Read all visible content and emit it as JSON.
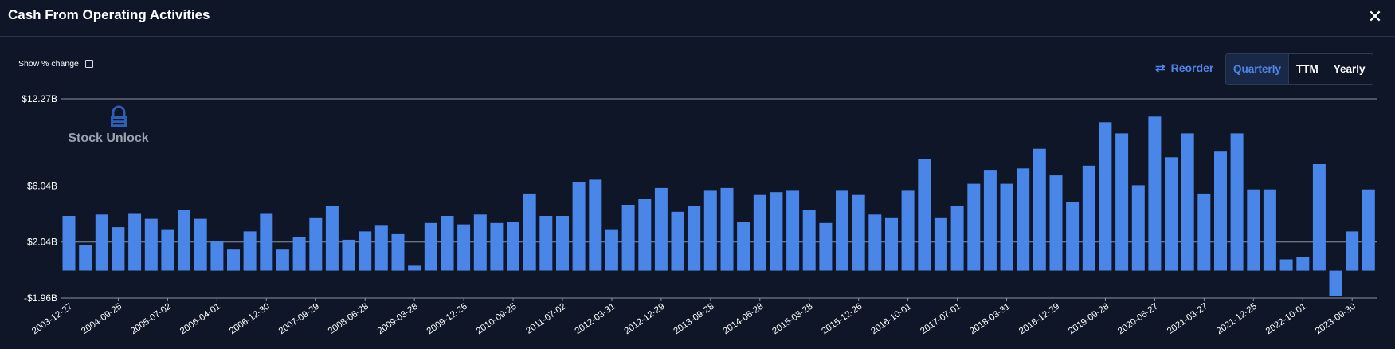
{
  "header": {
    "title": "Cash From Operating Activities"
  },
  "controls": {
    "show_pct_label": "Show % change",
    "reorder_label": "Reorder",
    "periods": [
      "Quarterly",
      "TTM",
      "Yearly"
    ],
    "active_period": "Quarterly"
  },
  "watermark": {
    "text": "Stock Unlock"
  },
  "colors": {
    "bar": "#4a86e8",
    "background": "#0e1628",
    "accent": "#4f86e8",
    "grid": "#8a93a3"
  },
  "chart_data": {
    "type": "bar",
    "ylim": [
      -1.96,
      12.27
    ],
    "y_ticks": [
      12.27,
      6.04,
      2.04,
      -1.96
    ],
    "y_tick_labels": [
      "$12.27B",
      "$6.04B",
      "$2.04B",
      "-$1.96B"
    ],
    "x_tick_labels": [
      "2003-12-27",
      "2004-09-25",
      "2005-07-02",
      "2006-04-01",
      "2006-12-30",
      "2007-09-29",
      "2008-06-28",
      "2009-03-28",
      "2009-12-26",
      "2010-09-25",
      "2011-07-02",
      "2012-03-31",
      "2012-12-29",
      "2013-09-28",
      "2014-06-28",
      "2015-03-28",
      "2015-12-26",
      "2016-10-01",
      "2017-07-01",
      "2018-03-31",
      "2018-12-29",
      "2019-09-28",
      "2020-06-27",
      "2021-03-27",
      "2021-12-25",
      "2022-10-01",
      "2023-09-30"
    ],
    "x_tick_bar_index": [
      0,
      3,
      6,
      9,
      12,
      15,
      18,
      21,
      24,
      27,
      30,
      33,
      36,
      39,
      42,
      45,
      48,
      51,
      54,
      57,
      60,
      63,
      66,
      69,
      72,
      75,
      78
    ],
    "units": "$B",
    "values": [
      3.9,
      1.8,
      4.0,
      3.1,
      4.1,
      3.7,
      2.9,
      4.3,
      3.7,
      2.1,
      1.5,
      2.8,
      4.1,
      1.5,
      2.4,
      3.8,
      4.6,
      2.2,
      2.8,
      3.2,
      2.6,
      0.35,
      3.4,
      3.9,
      3.3,
      4.0,
      3.4,
      3.5,
      5.5,
      3.9,
      3.9,
      6.3,
      6.5,
      2.9,
      4.7,
      5.1,
      5.9,
      4.2,
      4.6,
      5.7,
      5.9,
      3.5,
      5.4,
      5.6,
      5.7,
      4.35,
      3.4,
      5.7,
      5.4,
      4.0,
      3.8,
      5.7,
      8.0,
      3.8,
      4.6,
      6.2,
      7.2,
      6.2,
      7.3,
      8.7,
      6.8,
      4.9,
      7.5,
      10.6,
      9.8,
      6.1,
      11.0,
      8.1,
      9.8,
      5.5,
      8.5,
      9.8,
      5.8,
      5.8,
      0.8,
      1.0,
      7.6,
      -1.8,
      2.8,
      5.8
    ]
  }
}
